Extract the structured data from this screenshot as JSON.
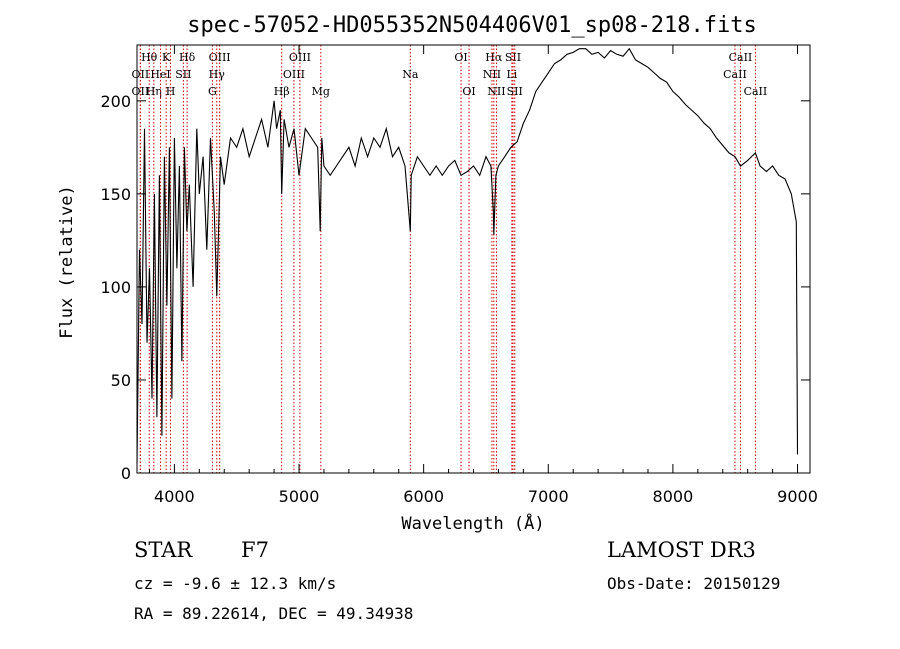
{
  "chart_data": {
    "type": "line",
    "title": "spec-57052-HD055352N504406V01_sp08-218.fits",
    "xlabel": "Wavelength (Å)",
    "ylabel": "Flux (relative)",
    "xlim": [
      3700,
      9100
    ],
    "ylim": [
      0,
      230
    ],
    "xticks": [
      4000,
      5000,
      6000,
      7000,
      8000,
      9000
    ],
    "yticks": [
      0,
      50,
      100,
      150,
      200
    ],
    "grid": false,
    "series": [
      {
        "x": [
          3700,
          3720,
          3740,
          3760,
          3780,
          3800,
          3820,
          3840,
          3860,
          3880,
          3900,
          3920,
          3940,
          3960,
          3980,
          4000,
          4020,
          4040,
          4060,
          4080,
          4100,
          4120,
          4150,
          4180,
          4200,
          4230,
          4260,
          4290,
          4320,
          4340,
          4370,
          4400,
          4450,
          4500,
          4550,
          4600,
          4650,
          4700,
          4750,
          4800,
          4820,
          4850,
          4861,
          4880,
          4920,
          4960,
          5000,
          5050,
          5100,
          5150,
          5170,
          5183,
          5200,
          5250,
          5300,
          5350,
          5400,
          5450,
          5500,
          5550,
          5600,
          5650,
          5700,
          5750,
          5800,
          5850,
          5893,
          5900,
          5950,
          6000,
          6050,
          6100,
          6150,
          6200,
          6250,
          6300,
          6350,
          6400,
          6450,
          6500,
          6540,
          6560,
          6563,
          6580,
          6600,
          6650,
          6700,
          6750,
          6800,
          6850,
          6900,
          6950,
          7000,
          7050,
          7100,
          7150,
          7200,
          7250,
          7300,
          7350,
          7400,
          7450,
          7500,
          7550,
          7600,
          7650,
          7700,
          7750,
          7800,
          7850,
          7900,
          7950,
          8000,
          8050,
          8100,
          8150,
          8200,
          8250,
          8300,
          8350,
          8400,
          8450,
          8498,
          8542,
          8600,
          8662,
          8700,
          8750,
          8800,
          8850,
          8900,
          8950,
          8990,
          9000
        ],
        "y": [
          5,
          120,
          80,
          185,
          70,
          110,
          40,
          150,
          30,
          160,
          20,
          170,
          90,
          175,
          40,
          180,
          110,
          165,
          60,
          175,
          130,
          155,
          100,
          185,
          150,
          170,
          120,
          180,
          140,
          95,
          170,
          155,
          180,
          175,
          185,
          170,
          180,
          190,
          175,
          200,
          185,
          195,
          150,
          190,
          175,
          185,
          160,
          185,
          180,
          175,
          130,
          180,
          165,
          160,
          165,
          170,
          175,
          165,
          180,
          170,
          180,
          175,
          185,
          170,
          175,
          165,
          130,
          160,
          170,
          165,
          160,
          165,
          160,
          165,
          168,
          160,
          162,
          165,
          160,
          170,
          165,
          140,
          128,
          160,
          165,
          170,
          175,
          178,
          188,
          195,
          205,
          210,
          215,
          220,
          222,
          225,
          226,
          228,
          228,
          225,
          226,
          223,
          227,
          225,
          224,
          228,
          222,
          220,
          218,
          215,
          212,
          210,
          205,
          202,
          198,
          195,
          192,
          188,
          185,
          180,
          176,
          172,
          170,
          165,
          168,
          172,
          165,
          162,
          165,
          160,
          158,
          150,
          135,
          10
        ]
      }
    ],
    "line_marks": [
      {
        "label": "Hθ",
        "x": 3798,
        "row": 1
      },
      {
        "label": "OII",
        "x": 3727,
        "row": 2
      },
      {
        "label": "OII",
        "x": 3727,
        "row": 3
      },
      {
        "label": "Hη",
        "x": 3835,
        "row": 3
      },
      {
        "label": "HeI",
        "x": 3889,
        "row": 2
      },
      {
        "label": "K",
        "x": 3934,
        "row": 1
      },
      {
        "label": "H",
        "x": 3969,
        "row": 3
      },
      {
        "label": "SII",
        "x": 4072,
        "row": 2
      },
      {
        "label": "Hδ",
        "x": 4102,
        "row": 1
      },
      {
        "label": "OIII",
        "x": 4363,
        "row": 1
      },
      {
        "label": "Hγ",
        "x": 4340,
        "row": 2
      },
      {
        "label": "G",
        "x": 4305,
        "row": 3
      },
      {
        "label": "Hβ",
        "x": 4861,
        "row": 3
      },
      {
        "label": "OIII",
        "x": 4959,
        "row": 2
      },
      {
        "label": "OIII",
        "x": 5007,
        "row": 1
      },
      {
        "label": "Mg",
        "x": 5175,
        "row": 3
      },
      {
        "label": "Na",
        "x": 5893,
        "row": 2
      },
      {
        "label": "OI",
        "x": 6300,
        "row": 1
      },
      {
        "label": "OI",
        "x": 6364,
        "row": 3
      },
      {
        "label": "Hα",
        "x": 6563,
        "row": 1
      },
      {
        "label": "NII",
        "x": 6548,
        "row": 2
      },
      {
        "label": "NII",
        "x": 6584,
        "row": 3
      },
      {
        "label": "SII",
        "x": 6717,
        "row": 1
      },
      {
        "label": "Li",
        "x": 6708,
        "row": 2
      },
      {
        "label": "SII",
        "x": 6731,
        "row": 3
      },
      {
        "label": "CaII",
        "x": 8542,
        "row": 1
      },
      {
        "label": "CaII",
        "x": 8498,
        "row": 2
      },
      {
        "label": "CaII",
        "x": 8662,
        "row": 3
      }
    ],
    "line_color": "#000000",
    "mark_color": "#cc0000"
  },
  "info": {
    "object_type": "STAR",
    "subclass": "F7",
    "survey": "LAMOST DR3",
    "cz": "cz = -9.6 ± 12.3 km/s",
    "obs_date": "Obs-Date: 20150129",
    "coords": "RA =  89.22614, DEC =  49.34938"
  }
}
